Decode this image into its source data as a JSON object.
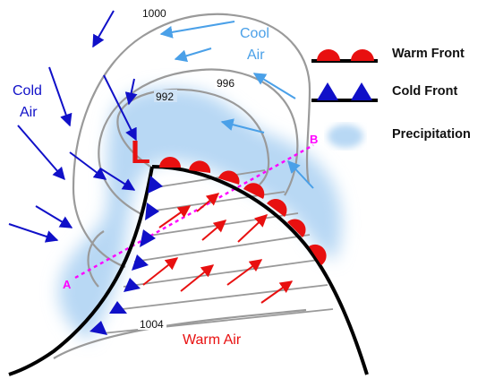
{
  "labels": {
    "cool_air": [
      "Cool",
      "Air"
    ],
    "cold_air": [
      "Cold",
      "Air"
    ],
    "warm_air": "Warm Air",
    "low": "L",
    "point_a": "A",
    "point_b": "B",
    "isobars": [
      "1000",
      "996",
      "992",
      "1004"
    ]
  },
  "legend": {
    "warm_front": "Warm Front",
    "cold_front": "Cold Front",
    "precipitation": "Precipitation"
  },
  "colors": {
    "cold": "#1010c8",
    "cool": "#4aa0e8",
    "warm": "#e81010",
    "precip": "#b8d8f4",
    "isobar": "#9a9a9a",
    "section_line": "#ff00ff",
    "front": "#000000"
  }
}
